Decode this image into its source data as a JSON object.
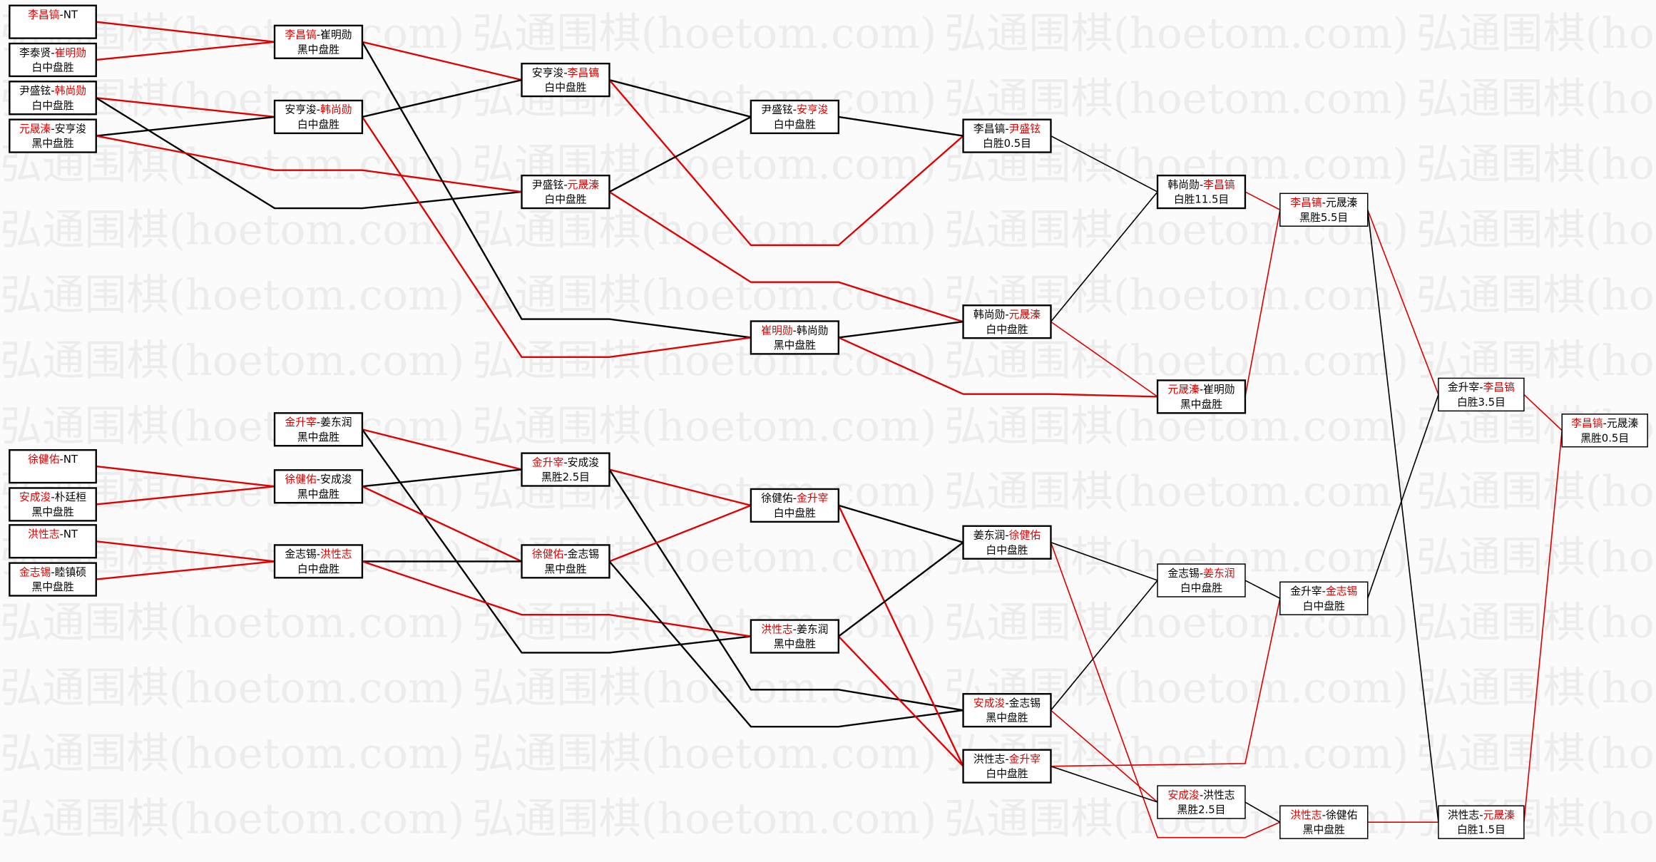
{
  "watermark": "弘通围棋(hoetom.com)",
  "colors": {
    "winner": "#e00000",
    "loser": "#000000",
    "background": "#fbfbfb"
  },
  "matches": [
    {
      "id": "A0",
      "p1": "李昌镐",
      "p2": "NT",
      "winner": 1,
      "result": ""
    },
    {
      "id": "A1",
      "p1": "李泰贤",
      "p2": "崔明勋",
      "winner": 2,
      "result": "白中盘胜"
    },
    {
      "id": "A2",
      "p1": "尹盛铉",
      "p2": "韩尚勋",
      "winner": 2,
      "result": "白中盘胜"
    },
    {
      "id": "A3",
      "p1": "元晟溱",
      "p2": "安亨浚",
      "winner": 1,
      "result": "黑中盘胜"
    },
    {
      "id": "A4",
      "p1": "徐健佑",
      "p2": "NT",
      "winner": 1,
      "result": ""
    },
    {
      "id": "A5",
      "p1": "安成浚",
      "p2": "朴廷桓",
      "winner": 1,
      "result": "黑中盘胜"
    },
    {
      "id": "A6",
      "p1": "洪性志",
      "p2": "NT",
      "winner": 1,
      "result": ""
    },
    {
      "id": "A7",
      "p1": "金志锡",
      "p2": "睦镇硕",
      "winner": 1,
      "result": "黑中盘胜"
    },
    {
      "id": "B0",
      "p1": "李昌镐",
      "p2": "崔明勋",
      "winner": 1,
      "result": "黑中盘胜"
    },
    {
      "id": "B1",
      "p1": "安亨浚",
      "p2": "韩尚勋",
      "winner": 2,
      "result": "白中盘胜"
    },
    {
      "id": "B2",
      "p1": "金升宰",
      "p2": "姜东润",
      "winner": 1,
      "result": "黑中盘胜"
    },
    {
      "id": "B3",
      "p1": "徐健佑",
      "p2": "安成浚",
      "winner": 1,
      "result": "黑中盘胜"
    },
    {
      "id": "B4",
      "p1": "金志锡",
      "p2": "洪性志",
      "winner": 2,
      "result": "白中盘胜"
    },
    {
      "id": "C0",
      "p1": "安亨浚",
      "p2": "李昌镐",
      "winner": 2,
      "result": "白中盘胜"
    },
    {
      "id": "C1",
      "p1": "尹盛铉",
      "p2": "元晟溱",
      "winner": 2,
      "result": "白中盘胜"
    },
    {
      "id": "C2",
      "p1": "金升宰",
      "p2": "安成浚",
      "winner": 1,
      "result": "黑胜2.5目"
    },
    {
      "id": "C3",
      "p1": "徐健佑",
      "p2": "金志锡",
      "winner": 1,
      "result": "黑中盘胜"
    },
    {
      "id": "D0",
      "p1": "尹盛铉",
      "p2": "安亨浚",
      "winner": 2,
      "result": "白中盘胜"
    },
    {
      "id": "D1",
      "p1": "崔明勋",
      "p2": "韩尚勋",
      "winner": 1,
      "result": "黑中盘胜"
    },
    {
      "id": "D2",
      "p1": "徐健佑",
      "p2": "金升宰",
      "winner": 2,
      "result": "白中盘胜"
    },
    {
      "id": "D3",
      "p1": "洪性志",
      "p2": "姜东润",
      "winner": 1,
      "result": "黑中盘胜"
    },
    {
      "id": "E0",
      "p1": "李昌镐",
      "p2": "尹盛铉",
      "winner": 2,
      "result": "白胜0.5目"
    },
    {
      "id": "E1",
      "p1": "韩尚勋",
      "p2": "元晟溱",
      "winner": 2,
      "result": "白中盘胜"
    },
    {
      "id": "E2",
      "p1": "姜东润",
      "p2": "徐健佑",
      "winner": 2,
      "result": "白中盘胜"
    },
    {
      "id": "E3",
      "p1": "安成浚",
      "p2": "金志锡",
      "winner": 1,
      "result": "黑中盘胜"
    },
    {
      "id": "E4",
      "p1": "洪性志",
      "p2": "金升宰",
      "winner": 2,
      "result": "白中盘胜"
    },
    {
      "id": "F0",
      "p1": "韩尚勋",
      "p2": "李昌镐",
      "winner": 2,
      "result": "白胜11.5目"
    },
    {
      "id": "F1",
      "p1": "元晟溱",
      "p2": "崔明勋",
      "winner": 1,
      "result": "黑中盘胜"
    },
    {
      "id": "F2",
      "p1": "金志锡",
      "p2": "姜东润",
      "winner": 2,
      "result": "白中盘胜"
    },
    {
      "id": "F3",
      "p1": "安成浚",
      "p2": "洪性志",
      "winner": 1,
      "result": "黑胜2.5目"
    },
    {
      "id": "G0",
      "p1": "李昌镐",
      "p2": "元晟溱",
      "winner": 1,
      "result": "黑胜5.5目"
    },
    {
      "id": "G1",
      "p1": "金升宰",
      "p2": "金志锡",
      "winner": 2,
      "result": "白中盘胜"
    },
    {
      "id": "G2",
      "p1": "洪性志",
      "p2": "徐健佑",
      "winner": 1,
      "result": "黑中盘胜"
    },
    {
      "id": "H0",
      "p1": "金升宰",
      "p2": "李昌镐",
      "winner": 2,
      "result": "白胜3.5目"
    },
    {
      "id": "H1",
      "p1": "洪性志",
      "p2": "元晟溱",
      "winner": 2,
      "result": "白胜1.5目"
    },
    {
      "id": "I0",
      "p1": "李昌镐",
      "p2": "元晟溱",
      "winner": 1,
      "result": "黑胜0.5目"
    }
  ]
}
